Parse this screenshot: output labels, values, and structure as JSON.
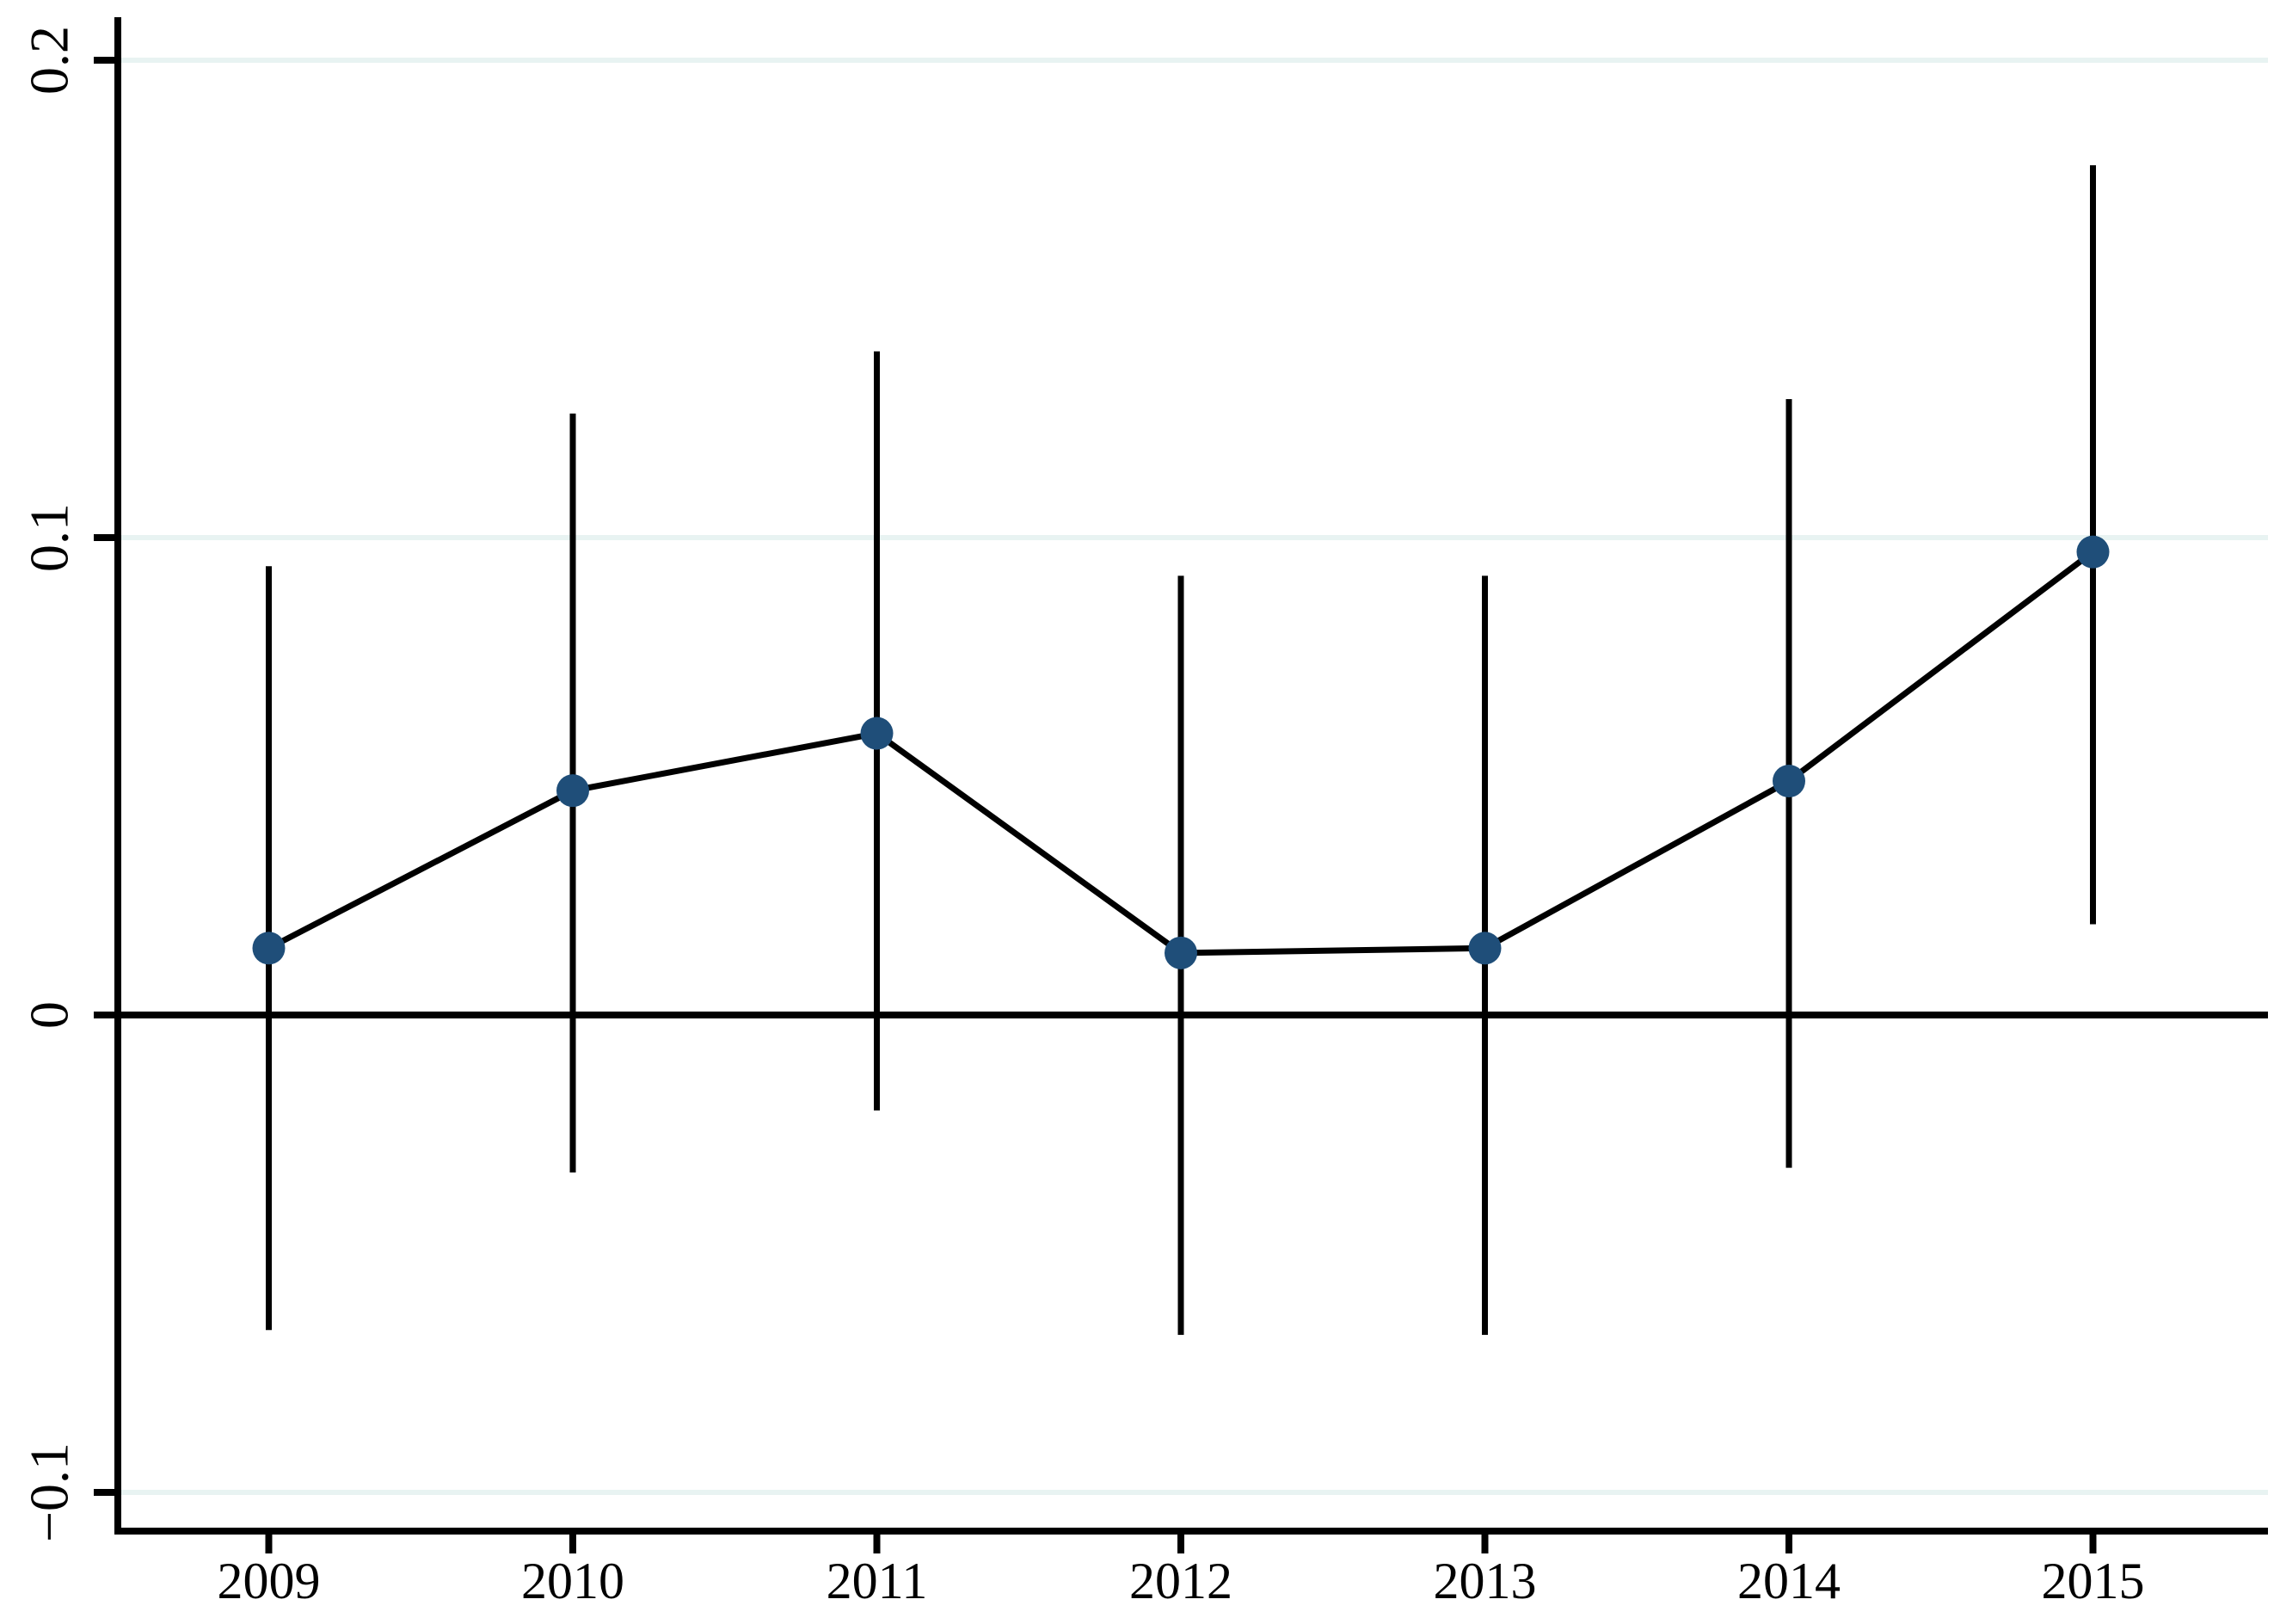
{
  "chart_data": {
    "type": "line",
    "subtype": "point-estimates-with-confidence-intervals",
    "title": "",
    "xlabel": "",
    "ylabel": "",
    "legend": "none",
    "grid": "horizontal-light",
    "x_labels": [
      "2009",
      "2010",
      "2011",
      "2012",
      "2013",
      "2014",
      "2015"
    ],
    "series": [
      {
        "name": "point-estimate",
        "values": [
          0.014,
          0.047,
          0.059,
          0.013,
          0.014,
          0.049,
          0.097
        ],
        "ci_low": [
          -0.066,
          -0.033,
          -0.02,
          -0.067,
          -0.067,
          -0.032,
          0.019
        ],
        "ci_high": [
          0.094,
          0.126,
          0.139,
          0.092,
          0.092,
          0.129,
          0.178
        ]
      }
    ],
    "y_ticks": [
      {
        "value": 0.2,
        "label": "0.2"
      },
      {
        "value": 0.1,
        "label": "0.1"
      },
      {
        "value": 0,
        "label": "0"
      },
      {
        "value": -0.1,
        "label": "−0.1"
      }
    ],
    "ylim": [
      -0.108,
      0.211
    ],
    "zero_line": true,
    "colors": {
      "point": "#1f4e79",
      "ci_line": "#000000",
      "trend_line": "#000000",
      "grid_line": "#e8f3f2",
      "axis": "#000000",
      "background": "#ffffff"
    }
  }
}
